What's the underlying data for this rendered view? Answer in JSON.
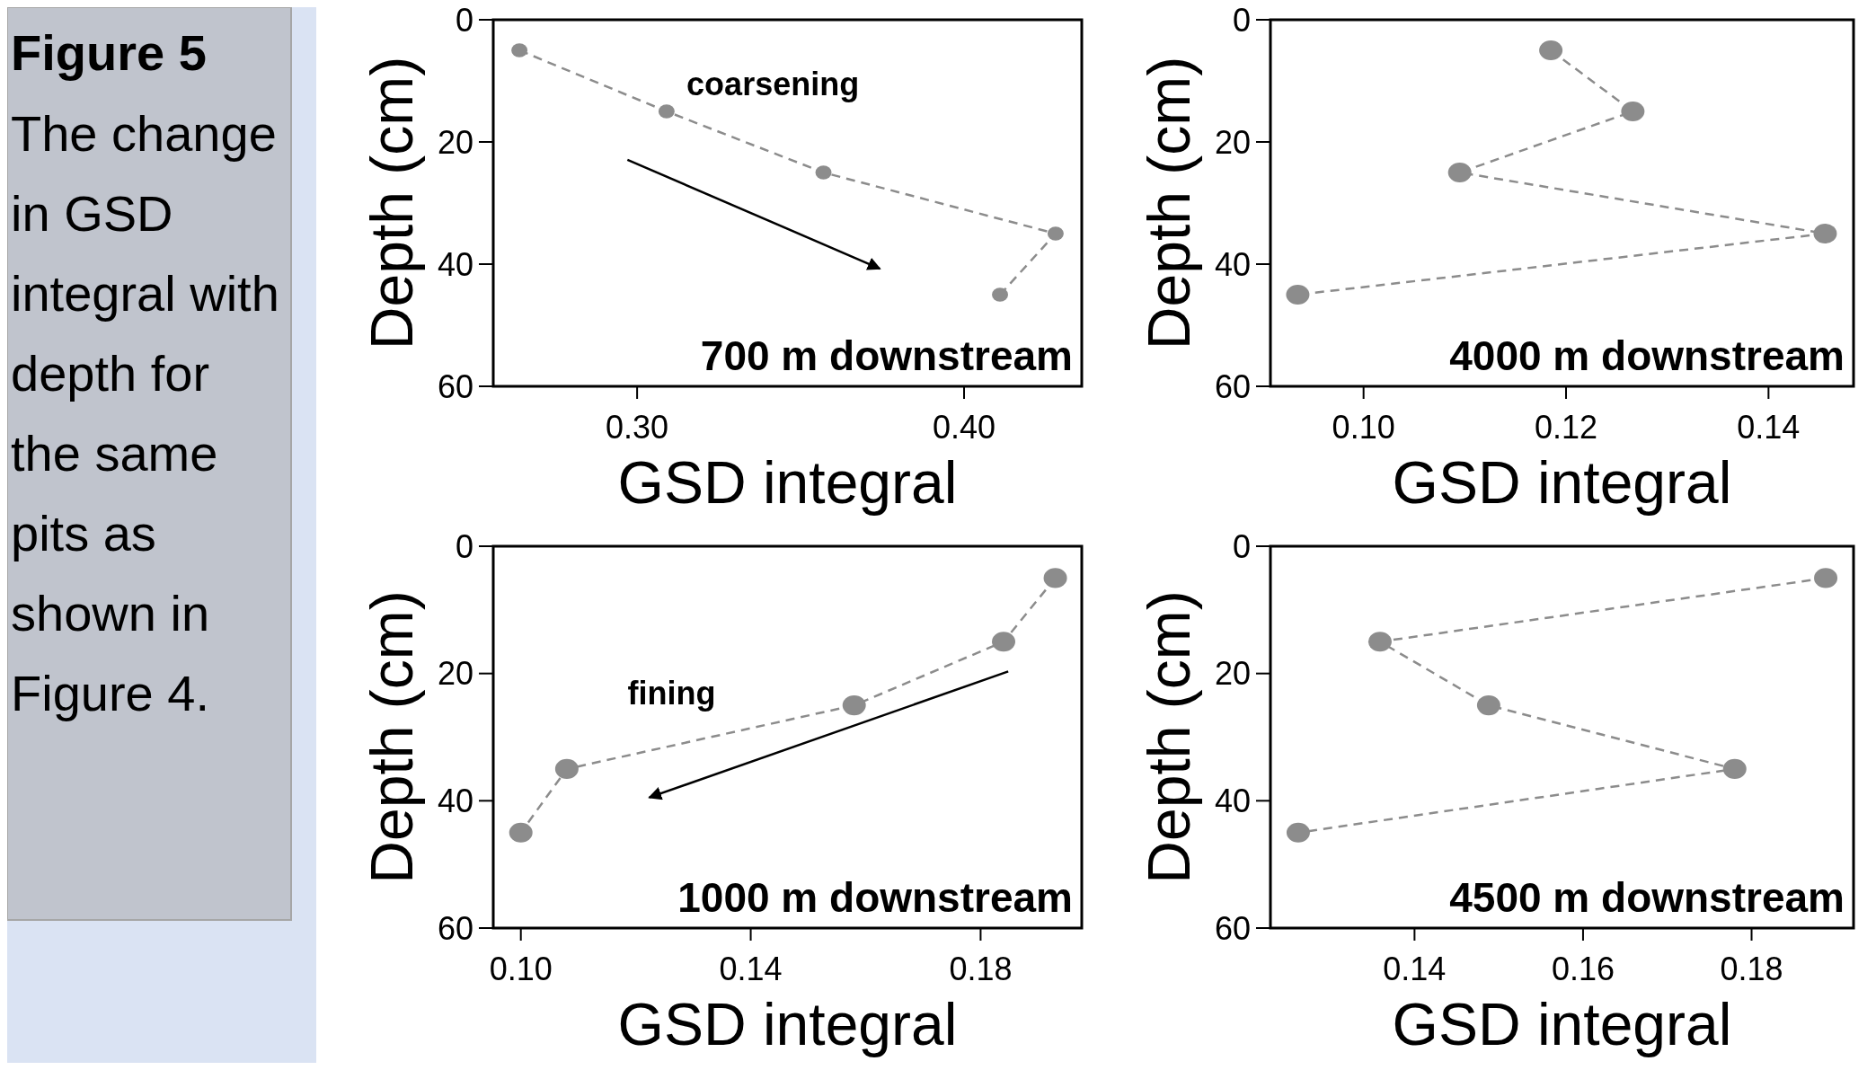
{
  "chart_data": [
    {
      "type": "other",
      "title": "Figure 5",
      "annotations": [
        "The change in GSD integral with depth for the same pits as shown in Figure 4."
      ]
    },
    {
      "type": "line",
      "title": "700 m downstream",
      "xlabel": "GSD integral",
      "ylabel": "Depth (cm)",
      "annotations": [
        "coarsening"
      ],
      "marker": "circle",
      "line_style": "dashed",
      "xlim": [
        0.256,
        0.436
      ],
      "xticks": [
        {
          "value": 0.3,
          "label": "0.30"
        },
        {
          "value": 0.4,
          "label": "0.40"
        }
      ],
      "ylim": [
        60,
        0
      ],
      "yticks": [
        0,
        20,
        40,
        60
      ],
      "series": [
        {
          "color": "#8c8c8c",
          "x": [
            0.264,
            0.309,
            0.357,
            0.428,
            0.411
          ],
          "values": [
            5,
            15,
            25,
            35,
            45
          ]
        }
      ]
    },
    {
      "type": "line",
      "title": "4000 m downstream",
      "xlabel": "GSD integral",
      "ylabel": "Depth (cm)",
      "marker": "circle",
      "line_style": "dashed",
      "xlim": [
        0.0908,
        0.1484
      ],
      "xticks": [
        {
          "value": 0.1,
          "label": "0.10"
        },
        {
          "value": 0.12,
          "label": "0.12"
        },
        {
          "value": 0.14,
          "label": "0.14"
        }
      ],
      "ylim": [
        60,
        0
      ],
      "yticks": [
        0,
        20,
        40,
        60
      ],
      "series": [
        {
          "color": "#8c8c8c",
          "x": [
            0.1185,
            0.1266,
            0.1095,
            0.1456,
            0.0935
          ],
          "values": [
            5,
            15,
            25,
            35,
            45
          ]
        }
      ]
    },
    {
      "type": "line",
      "title": "1000 m downstream",
      "xlabel": "GSD integral",
      "ylabel": "Depth (cm)",
      "annotations": [
        "fining"
      ],
      "marker": "circle",
      "line_style": "dashed",
      "xlim": [
        0.0952,
        0.1976
      ],
      "xticks": [
        {
          "value": 0.1,
          "label": "0.10"
        },
        {
          "value": 0.14,
          "label": "0.14"
        },
        {
          "value": 0.18,
          "label": "0.18"
        }
      ],
      "ylim": [
        60,
        0
      ],
      "yticks": [
        0,
        20,
        40,
        60
      ],
      "series": [
        {
          "color": "#8c8c8c",
          "x": [
            0.193,
            0.184,
            0.158,
            0.108,
            0.1
          ],
          "values": [
            5,
            15,
            25,
            35,
            45
          ]
        }
      ]
    },
    {
      "type": "line",
      "title": "4500 m downstream",
      "xlabel": "GSD integral",
      "ylabel": "Depth (cm)",
      "marker": "circle",
      "line_style": "dashed",
      "xlim": [
        0.1229,
        0.1921
      ],
      "xticks": [
        {
          "value": 0.14,
          "label": "0.14"
        },
        {
          "value": 0.16,
          "label": "0.16"
        },
        {
          "value": 0.18,
          "label": "0.18"
        }
      ],
      "ylim": [
        60,
        0
      ],
      "yticks": [
        0,
        20,
        40,
        60
      ],
      "series": [
        {
          "color": "#8c8c8c",
          "x": [
            0.1888,
            0.1359,
            0.1488,
            0.178,
            0.1262
          ],
          "values": [
            5,
            15,
            25,
            35,
            45
          ]
        }
      ]
    }
  ]
}
